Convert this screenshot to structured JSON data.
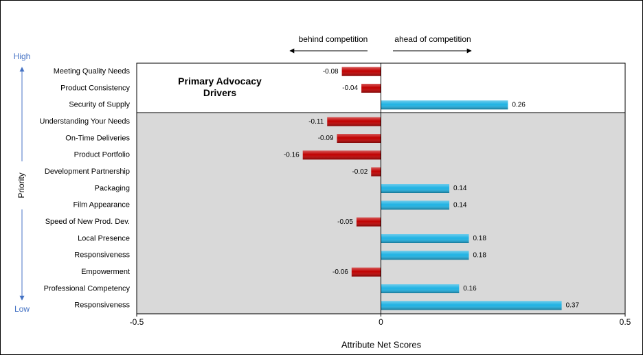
{
  "chart_data": {
    "type": "hbar",
    "x_label": "Attribute Net Scores",
    "categories": [
      "Meeting Quality Needs",
      "Product Consistency",
      "Security of Supply",
      "Understanding Your Needs",
      "On-Time Deliveries",
      "Product Portfolio",
      "Development Partnership",
      "Packaging",
      "Film Appearance",
      "Speed of New Prod. Dev.",
      "Local Presence",
      "Responsiveness",
      "Empowerment",
      "Professional Competency",
      "Responsiveness"
    ],
    "values": [
      -0.08,
      -0.04,
      0.26,
      -0.11,
      -0.09,
      -0.16,
      -0.02,
      0.14,
      0.14,
      -0.05,
      0.18,
      0.18,
      -0.06,
      0.16,
      0.37
    ],
    "colors": {
      "negative": "#c00000",
      "positive": "#1fb2e3"
    },
    "xlim": [
      -0.5,
      0.5
    ],
    "xticks": [
      -0.5,
      0,
      0.5
    ],
    "annotations": {
      "behind": "behind competition",
      "ahead": "ahead of competition",
      "high": "High",
      "low": "Low",
      "priority": "Priority",
      "group": "Primary Advocacy Drivers"
    }
  }
}
